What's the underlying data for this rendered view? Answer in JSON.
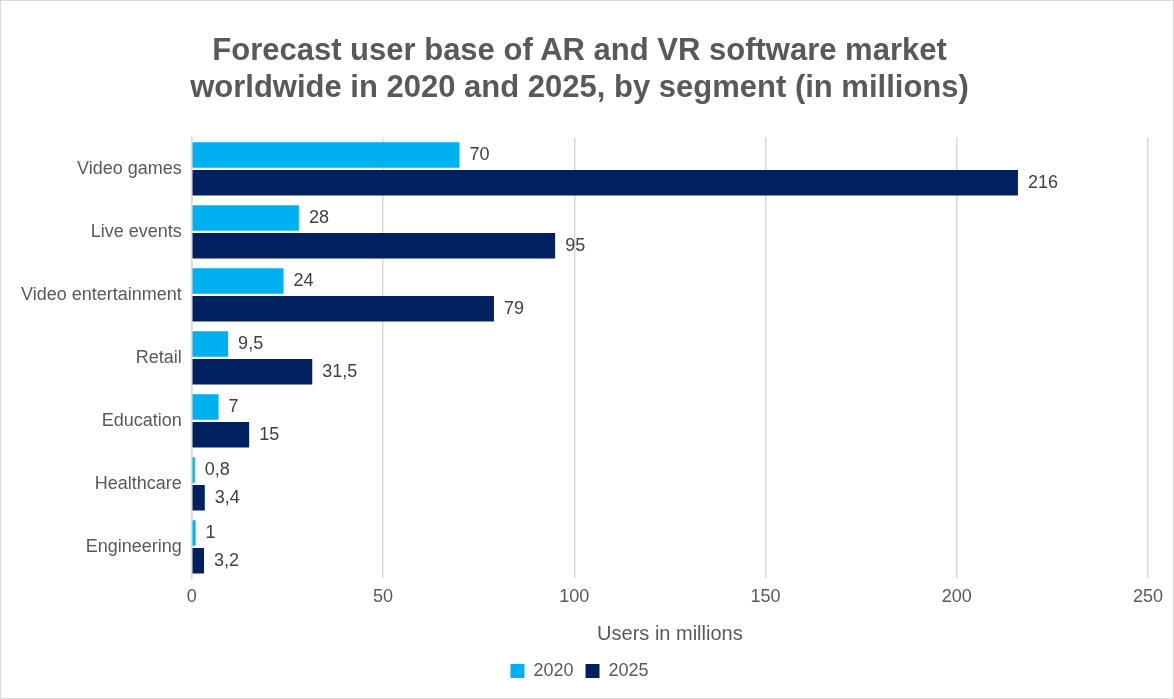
{
  "chart_data": {
    "type": "bar",
    "orientation": "horizontal",
    "title": "Forecast user base of AR and VR software market worldwide in 2020 and 2025, by segment (in millions)",
    "xlabel": "Users in millions",
    "categories": [
      "Video games",
      "Live events",
      "Video entertainment",
      "Retail",
      "Education",
      "Healthcare",
      "Engineering"
    ],
    "series": [
      {
        "name": "2020",
        "color": "#00b0f0",
        "values": [
          70,
          28,
          24,
          9.5,
          7,
          0.8,
          1
        ],
        "value_labels": [
          "70",
          "28",
          "24",
          "9,5",
          "7",
          "0,8",
          "1"
        ]
      },
      {
        "name": "2025",
        "color": "#002060",
        "values": [
          216,
          95,
          79,
          31.5,
          15,
          3.4,
          3.2
        ],
        "value_labels": [
          "216",
          "95",
          "79",
          "31,5",
          "15",
          "3,4",
          "3,2"
        ]
      }
    ],
    "xlim": [
      0,
      250
    ],
    "xticks": [
      0,
      50,
      100,
      150,
      200,
      250
    ],
    "grid": "x",
    "legend": "bottom"
  }
}
